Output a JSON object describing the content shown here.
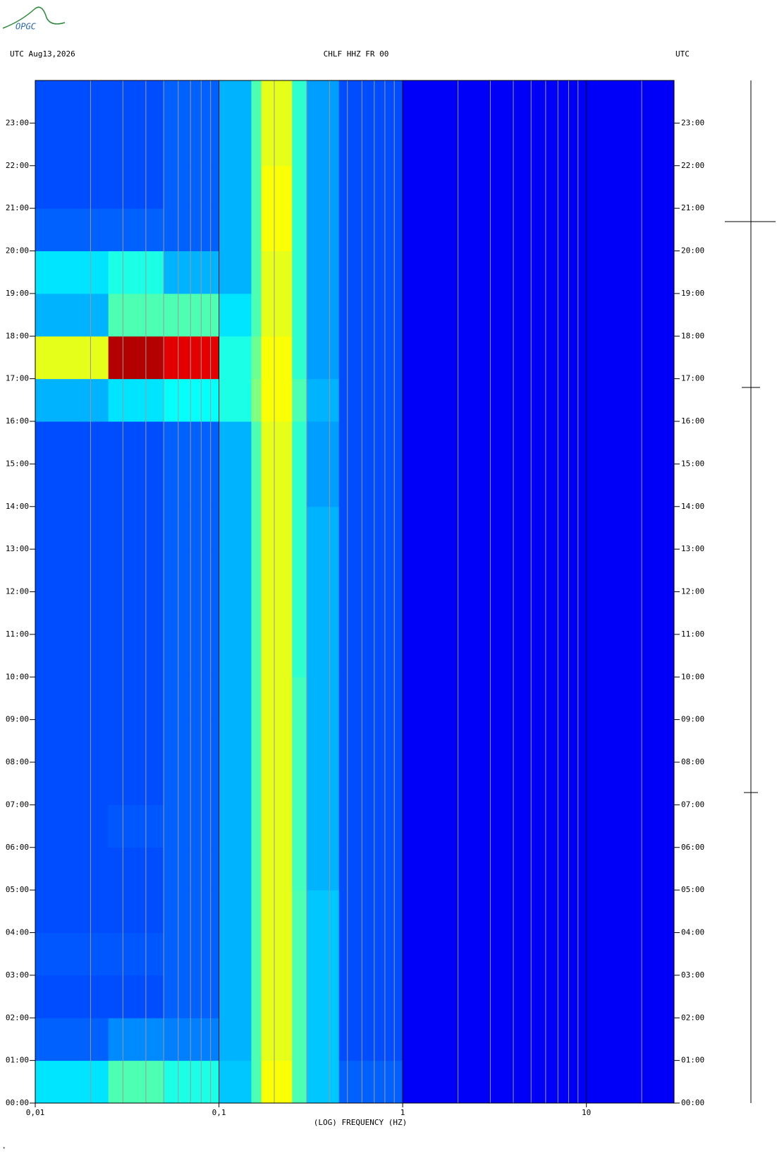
{
  "chart_data": {
    "type": "heatmap",
    "logo": "OPGC",
    "header_left": "UTC  Aug13,2026",
    "title": "CHLF HHZ FR 00",
    "header_right": "UTC",
    "xlabel": "(LOG) FREQUENCY (HZ)",
    "xscale": "log",
    "xlim": [
      0.01,
      30
    ],
    "xticks": [
      {
        "value": 0.01,
        "label": "0,01"
      },
      {
        "value": 0.1,
        "label": "0,1"
      },
      1,
      10
    ],
    "xminor": [
      0.02,
      0.03,
      0.04,
      0.05,
      0.06,
      0.07,
      0.08,
      0.09,
      0.2,
      0.3,
      0.4,
      0.5,
      0.6,
      0.7,
      0.8,
      0.9,
      2,
      3,
      4,
      5,
      6,
      7,
      8,
      9,
      20
    ],
    "ylim": [
      0,
      24
    ],
    "yticks": [
      {
        "value": 0,
        "label": "00:00"
      },
      {
        "value": 1,
        "label": "01:00"
      },
      {
        "value": 2,
        "label": "02:00"
      },
      {
        "value": 3,
        "label": "03:00"
      },
      {
        "value": 4,
        "label": "04:00"
      },
      {
        "value": 5,
        "label": "05:00"
      },
      {
        "value": 6,
        "label": "06:00"
      },
      {
        "value": 7,
        "label": "07:00"
      },
      {
        "value": 8,
        "label": "08:00"
      },
      {
        "value": 9,
        "label": "09:00"
      },
      {
        "value": 10,
        "label": "10:00"
      },
      {
        "value": 11,
        "label": "11:00"
      },
      {
        "value": 12,
        "label": "12:00"
      },
      {
        "value": 13,
        "label": "13:00"
      },
      {
        "value": 14,
        "label": "14:00"
      },
      {
        "value": 15,
        "label": "15:00"
      },
      {
        "value": 16,
        "label": "16:00"
      },
      {
        "value": 17,
        "label": "17:00"
      },
      {
        "value": 18,
        "label": "18:00"
      },
      {
        "value": 19,
        "label": "19:00"
      },
      {
        "value": 20,
        "label": "20:00"
      },
      {
        "value": 21,
        "label": "21:00"
      },
      {
        "value": 22,
        "label": "22:00"
      },
      {
        "value": 23,
        "label": "23:00"
      }
    ],
    "colormap": "jet",
    "clim": [
      0,
      1
    ],
    "freq_edges": [
      0.01,
      0.025,
      0.05,
      0.1,
      0.15,
      0.17,
      0.25,
      0.3,
      0.45,
      1,
      30
    ],
    "hour_edges": [
      0,
      1,
      2,
      3,
      4,
      5,
      6,
      7,
      8,
      9,
      10,
      11,
      12,
      13,
      14,
      15,
      16,
      17,
      18,
      19,
      20,
      21,
      22,
      23,
      24
    ],
    "values": [
      [
        0.35,
        0.45,
        0.4,
        0.32,
        0.45,
        0.62,
        0.45,
        0.32,
        0.22,
        0.12
      ],
      [
        0.22,
        0.26,
        0.25,
        0.3,
        0.45,
        0.6,
        0.45,
        0.32,
        0.2,
        0.12
      ],
      [
        0.2,
        0.2,
        0.22,
        0.3,
        0.45,
        0.6,
        0.45,
        0.32,
        0.2,
        0.12
      ],
      [
        0.21,
        0.21,
        0.22,
        0.3,
        0.45,
        0.6,
        0.45,
        0.32,
        0.2,
        0.12
      ],
      [
        0.2,
        0.2,
        0.22,
        0.3,
        0.45,
        0.6,
        0.45,
        0.32,
        0.2,
        0.12
      ],
      [
        0.2,
        0.2,
        0.22,
        0.3,
        0.45,
        0.6,
        0.44,
        0.3,
        0.2,
        0.12
      ],
      [
        0.2,
        0.21,
        0.22,
        0.3,
        0.45,
        0.6,
        0.44,
        0.3,
        0.2,
        0.12
      ],
      [
        0.2,
        0.2,
        0.22,
        0.3,
        0.45,
        0.6,
        0.44,
        0.3,
        0.2,
        0.12
      ],
      [
        0.2,
        0.2,
        0.22,
        0.3,
        0.45,
        0.6,
        0.44,
        0.3,
        0.2,
        0.12
      ],
      [
        0.2,
        0.2,
        0.22,
        0.3,
        0.45,
        0.6,
        0.44,
        0.3,
        0.2,
        0.12
      ],
      [
        0.2,
        0.2,
        0.22,
        0.3,
        0.45,
        0.6,
        0.42,
        0.3,
        0.2,
        0.12
      ],
      [
        0.2,
        0.2,
        0.22,
        0.3,
        0.45,
        0.6,
        0.42,
        0.3,
        0.2,
        0.12
      ],
      [
        0.2,
        0.2,
        0.22,
        0.3,
        0.45,
        0.6,
        0.42,
        0.3,
        0.2,
        0.12
      ],
      [
        0.2,
        0.2,
        0.22,
        0.3,
        0.45,
        0.6,
        0.42,
        0.3,
        0.2,
        0.12
      ],
      [
        0.2,
        0.2,
        0.22,
        0.3,
        0.45,
        0.6,
        0.42,
        0.28,
        0.2,
        0.12
      ],
      [
        0.2,
        0.2,
        0.22,
        0.3,
        0.45,
        0.6,
        0.42,
        0.28,
        0.2,
        0.12
      ],
      [
        0.3,
        0.35,
        0.38,
        0.4,
        0.5,
        0.62,
        0.45,
        0.3,
        0.2,
        0.12
      ],
      [
        0.6,
        0.95,
        0.9,
        0.4,
        0.48,
        0.62,
        0.42,
        0.28,
        0.2,
        0.12
      ],
      [
        0.3,
        0.45,
        0.45,
        0.35,
        0.45,
        0.6,
        0.42,
        0.28,
        0.2,
        0.12
      ],
      [
        0.35,
        0.4,
        0.3,
        0.3,
        0.45,
        0.6,
        0.42,
        0.28,
        0.2,
        0.12
      ],
      [
        0.22,
        0.22,
        0.22,
        0.3,
        0.45,
        0.62,
        0.42,
        0.28,
        0.2,
        0.12
      ],
      [
        0.2,
        0.2,
        0.22,
        0.3,
        0.45,
        0.62,
        0.42,
        0.28,
        0.2,
        0.12
      ],
      [
        0.2,
        0.2,
        0.22,
        0.3,
        0.45,
        0.6,
        0.42,
        0.28,
        0.2,
        0.12
      ],
      [
        0.2,
        0.2,
        0.22,
        0.3,
        0.45,
        0.6,
        0.42,
        0.28,
        0.2,
        0.12
      ]
    ]
  }
}
